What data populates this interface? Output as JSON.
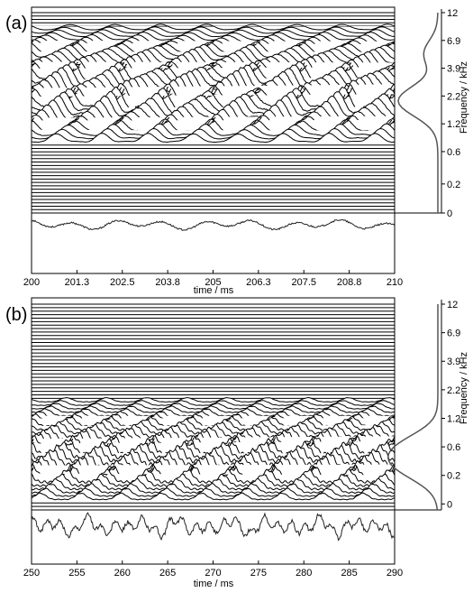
{
  "chart_data": [
    {
      "type": "line",
      "panel_label": "(a)",
      "xlabel": "time / ms",
      "xlim": [
        200,
        210
      ],
      "xticks": [
        "200",
        "201.3",
        "202.5",
        "203.8",
        "205",
        "206.3",
        "207.5",
        "208.8",
        "210"
      ],
      "ylabel": "Frequency / kHz",
      "yticks": [
        "12",
        "6.9",
        "3.9",
        "2.2",
        "1.2",
        "0.6",
        "0.2",
        "0"
      ],
      "ytick_positions": [
        0,
        2.0,
        4.0,
        6.0,
        8.0,
        10.0,
        12.33,
        14.42
      ],
      "channel_count": 60,
      "active_band": {
        "from_channel": 5,
        "to_channel": 38,
        "peak_channel": 26
      },
      "activity_period_ms": 1.25,
      "envelope_profile": {
        "peak_channel": 26,
        "peak_value": 1.0,
        "secondary_peak_channel": 12,
        "secondary_value": 0.35
      },
      "waveform": {
        "style": "smooth",
        "amplitude": 0.35
      },
      "colors": {
        "traces": "#000000",
        "envelope": "#555555"
      }
    },
    {
      "type": "line",
      "panel_label": "(b)",
      "xlabel": "time / ms",
      "xlim": [
        250,
        290
      ],
      "xticks": [
        "250",
        "255",
        "260",
        "265",
        "270",
        "275",
        "280",
        "285",
        "290"
      ],
      "ylabel": "Frequency / kHz",
      "yticks": [
        "12",
        "6.9",
        "3.9",
        "2.2",
        "1.2",
        "0.6",
        "0.2",
        "0"
      ],
      "ytick_positions": [
        0,
        2.0,
        4.0,
        6.0,
        8.0,
        10.0,
        12.0,
        14.0
      ],
      "channel_count": 60,
      "active_band": {
        "from_channel": 28,
        "to_channel": 56,
        "peak_channel": 46
      },
      "activity_period_ms": 4.44,
      "envelope_profile": {
        "peak_channel": 46,
        "peak_value": 1.0,
        "secondary_peak_channel": 40,
        "secondary_value": 0.6
      },
      "waveform": {
        "style": "irregular",
        "amplitude": 0.55
      },
      "colors": {
        "traces": "#000000",
        "envelope": "#555555"
      }
    }
  ]
}
